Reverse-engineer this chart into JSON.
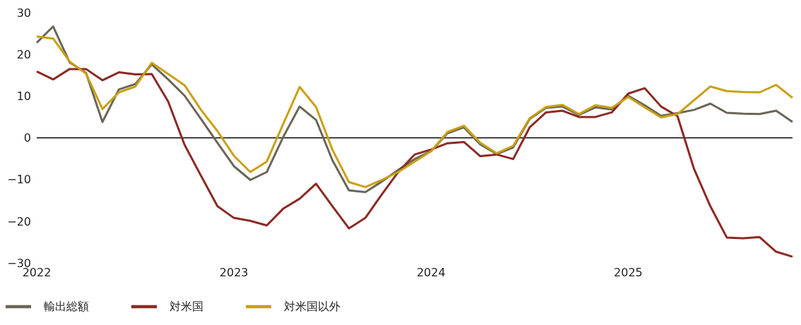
{
  "chart_data": {
    "type": "line",
    "categories": [
      "2022",
      null,
      null,
      null,
      null,
      null,
      null,
      null,
      null,
      null,
      null,
      null,
      "2023",
      null,
      null,
      null,
      null,
      null,
      null,
      null,
      null,
      null,
      null,
      null,
      "2024",
      null,
      null,
      null,
      null,
      null,
      null,
      null,
      null,
      null,
      null,
      null,
      "2025",
      null,
      null,
      null,
      null,
      null,
      null,
      null,
      null,
      null,
      null
    ],
    "series": [
      {
        "name": "輸出総額",
        "color": "#6b6656",
        "values": [
          22.8,
          26.7,
          18.1,
          15.6,
          3.8,
          11.6,
          12.9,
          17.6,
          14.0,
          10.1,
          4.5,
          -1.2,
          -6.8,
          -10.1,
          -8.2,
          0.2,
          7.5,
          4.3,
          -5.4,
          -12.6,
          -13.0,
          -10.5,
          -7.7,
          -5.1,
          -3.2,
          1.1,
          2.5,
          -1.6,
          -3.9,
          -2.3,
          4.5,
          7.2,
          7.5,
          5.5,
          7.3,
          6.8,
          10.1,
          7.8,
          5.3,
          5.9,
          6.7,
          8.2,
          6.0,
          5.8,
          5.7,
          6.5,
          3.8
        ]
      },
      {
        "name": "対米国",
        "color": "#8b2a24",
        "values": [
          15.9,
          14.0,
          16.5,
          16.5,
          13.8,
          15.7,
          15.2,
          15.3,
          8.7,
          -1.7,
          -9.1,
          -16.4,
          -19.2,
          -19.9,
          -21.0,
          -17.0,
          -14.6,
          -11.0,
          -16.4,
          -21.7,
          -19.2,
          -13.6,
          -8.2,
          -4.0,
          -2.8,
          -1.3,
          -1.0,
          -4.4,
          -4.0,
          -5.1,
          2.5,
          6.1,
          6.5,
          5.0,
          5.0,
          6.1,
          10.6,
          11.9,
          7.5,
          5.2,
          -7.4,
          -16.4,
          -23.9,
          -24.1,
          -23.8,
          -27.3,
          -28.5
        ]
      },
      {
        "name": "対米国以外",
        "color": "#c9a014",
        "values": [
          24.3,
          23.8,
          18.3,
          15.4,
          6.9,
          10.9,
          12.3,
          18.0,
          15.3,
          12.6,
          6.7,
          1.6,
          -4.3,
          -8.2,
          -5.7,
          3.3,
          12.2,
          7.4,
          -2.9,
          -10.6,
          -11.8,
          -10.1,
          -8.2,
          -5.7,
          -3.2,
          1.4,
          2.9,
          -1.2,
          -3.7,
          -1.9,
          4.7,
          7.4,
          7.9,
          5.7,
          7.8,
          7.2,
          9.8,
          7.3,
          4.9,
          5.7,
          9.0,
          12.3,
          11.2,
          11.0,
          10.9,
          12.7,
          9.6
        ]
      }
    ],
    "ylim": [
      -30,
      30
    ],
    "yticks": [
      {
        "value": -30,
        "label": "−30"
      },
      {
        "value": -20,
        "label": "−20"
      },
      {
        "value": -10,
        "label": "−10"
      },
      0,
      10,
      20,
      30
    ],
    "ref_lines": [
      {
        "axis": "y",
        "value": 0,
        "color": "#000000"
      }
    ],
    "grid": false,
    "legend": "bottom left",
    "marker": "none",
    "line_style": "solid"
  }
}
